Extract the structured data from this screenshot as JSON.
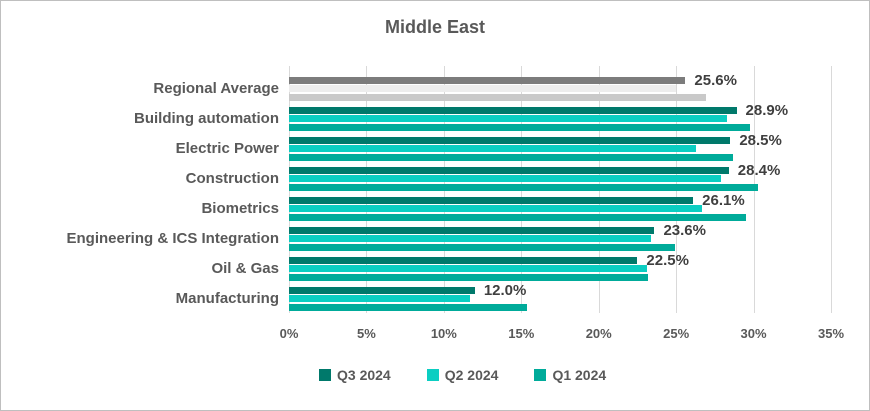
{
  "title": "Middle East",
  "colors": {
    "grid": "#D9D9D9",
    "axis_line": "#D9D9D9",
    "title_text": "#595959",
    "axis_text": "#595959",
    "category_text": "#595959",
    "data_label_text": "#3F3F3F",
    "border": "#BFBFBF",
    "background": "#FFFFFF"
  },
  "chart_data": {
    "type": "bar",
    "orientation": "horizontal",
    "title": "Middle East",
    "categories": [
      "Regional Average",
      "Building automation",
      "Electric Power",
      "Construction",
      "Biometrics",
      "Engineering & ICS Integration",
      "Oil & Gas",
      "Manufacturing"
    ],
    "series": [
      {
        "name": "Q3 2024",
        "color": "#00796B",
        "regional_average_color": "#7C7C7C",
        "values": [
          25.6,
          28.9,
          28.5,
          28.4,
          26.1,
          23.6,
          22.5,
          12.0
        ]
      },
      {
        "name": "Q2 2024",
        "color": "#0BCEC2",
        "regional_average_color": "#EDEDED",
        "values": [
          25.0,
          28.3,
          26.3,
          27.9,
          26.7,
          23.4,
          23.1,
          11.7
        ]
      },
      {
        "name": "Q1 2024",
        "color": "#00AB9A",
        "regional_average_color": "#C9C9C9",
        "values": [
          26.9,
          29.8,
          28.7,
          30.3,
          29.5,
          24.9,
          23.2,
          15.4
        ]
      }
    ],
    "data_labels": [
      "25.6%",
      "28.9%",
      "28.5%",
      "28.4%",
      "26.1%",
      "23.6%",
      "22.5%",
      "12.0%"
    ],
    "data_labels_on_series": "Q3 2024",
    "x_ticks": [
      "0%",
      "5%",
      "10%",
      "15%",
      "20%",
      "25%",
      "30%",
      "35%"
    ],
    "xlim": [
      0,
      35
    ],
    "grid": true,
    "legend_position": "bottom",
    "legend": [
      "Q3 2024",
      "Q2 2024",
      "Q1 2024"
    ]
  }
}
